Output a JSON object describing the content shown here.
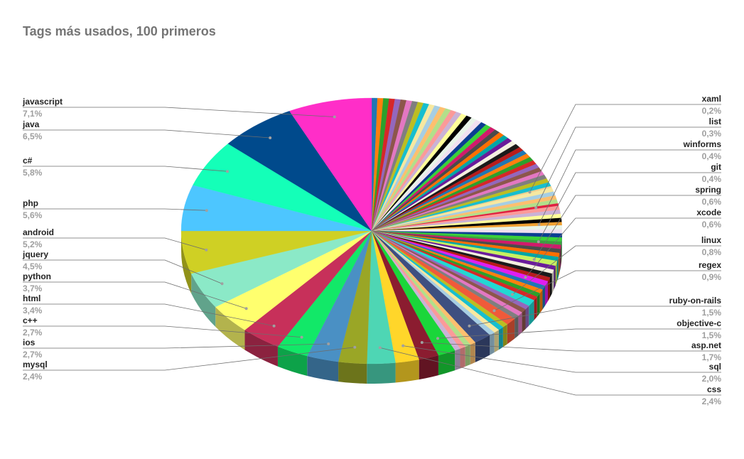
{
  "chart_data": {
    "type": "pie",
    "title": "Tags más usados, 100 primeros",
    "labeled_slices": [
      {
        "name": "javascript",
        "value": 7.1,
        "label": "7,1%",
        "color": "#ff2ec8"
      },
      {
        "name": "java",
        "value": 6.5,
        "label": "6,5%",
        "color": "#004a8c"
      },
      {
        "name": "c#",
        "value": 5.8,
        "label": "5,8%",
        "color": "#14ffb8"
      },
      {
        "name": "php",
        "value": 5.6,
        "label": "5,6%",
        "color": "#4dc6ff"
      },
      {
        "name": "android",
        "value": 5.2,
        "label": "5,2%",
        "color": "#cfd024"
      },
      {
        "name": "jquery",
        "value": 4.5,
        "label": "4,5%",
        "color": "#8be9c7"
      },
      {
        "name": "python",
        "value": 3.7,
        "label": "3,7%",
        "color": "#ffff6e"
      },
      {
        "name": "html",
        "value": 3.4,
        "label": "3,4%",
        "color": "#c7305a"
      },
      {
        "name": "c++",
        "value": 2.7,
        "label": "2,7%",
        "color": "#12e868"
      },
      {
        "name": "ios",
        "value": 2.7,
        "label": "2,7%",
        "color": "#4a90c4"
      },
      {
        "name": "mysql",
        "value": 2.4,
        "label": "2,4%",
        "color": "#9aa626"
      },
      {
        "name": "css",
        "value": 2.4,
        "label": "2,4%",
        "color": "#4ed6b4"
      },
      {
        "name": "sql",
        "value": 2.0,
        "label": "2,0%",
        "color": "#ffd62a"
      },
      {
        "name": "asp.net",
        "value": 1.7,
        "label": "1,7%",
        "color": "#8b1c30"
      },
      {
        "name": "objective-c",
        "value": 1.5,
        "label": "1,5%",
        "color": "#1ad63a"
      },
      {
        "name": "ruby-on-rails",
        "value": 1.5,
        "label": "1,5%",
        "color": "#3e4f80"
      },
      {
        "name": "regex",
        "value": 0.9,
        "label": "0,9%",
        "color": "#f05a3a"
      },
      {
        "name": "linux",
        "value": 0.8,
        "label": "0,8%",
        "color": "#22d8d2"
      },
      {
        "name": "xcode",
        "value": 0.6,
        "label": "0,6%",
        "color": "#e01ef0"
      },
      {
        "name": "spring",
        "value": 0.6,
        "label": "0,6%",
        "color": "#c8f060"
      },
      {
        "name": "git",
        "value": 0.4,
        "label": "0,4%",
        "color": "#3aa040"
      },
      {
        "name": "winforms",
        "value": 0.4,
        "label": "0,4%",
        "color": "#f0a030"
      },
      {
        "name": "list",
        "value": 0.3,
        "label": "0,3%",
        "color": "#e02040"
      },
      {
        "name": "xaml",
        "value": 0.2,
        "label": "0,2%",
        "color": "#f0d090"
      }
    ],
    "left_labels": [
      "javascript",
      "java",
      "c#",
      "php",
      "android",
      "jquery",
      "python",
      "html",
      "c++",
      "ios",
      "mysql"
    ],
    "right_labels": [
      "xaml",
      "list",
      "winforms",
      "git",
      "spring",
      "xcode",
      "linux",
      "regex",
      "ruby-on-rails",
      "objective-c",
      "asp.net",
      "sql",
      "css"
    ],
    "legend": "none",
    "style": "3d"
  }
}
